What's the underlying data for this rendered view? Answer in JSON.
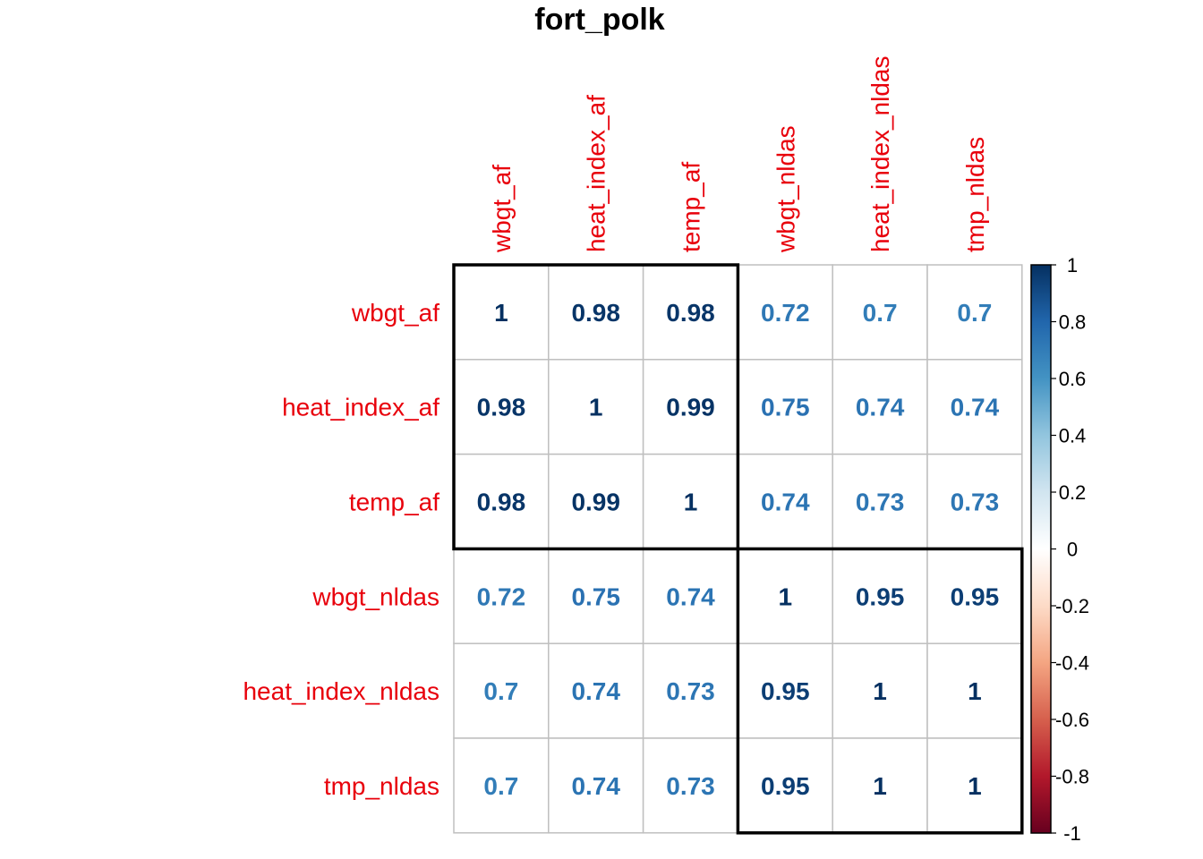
{
  "chart_data": {
    "type": "heatmap",
    "title": "fort_polk",
    "variables": [
      "wbgt_af",
      "heat_index_af",
      "temp_af",
      "wbgt_nldas",
      "heat_index_nldas",
      "tmp_nldas"
    ],
    "matrix": [
      [
        "1",
        "0.98",
        "0.98",
        "0.72",
        "0.7",
        "0.7"
      ],
      [
        "0.98",
        "1",
        "0.99",
        "0.75",
        "0.74",
        "0.74"
      ],
      [
        "0.98",
        "0.99",
        "1",
        "0.74",
        "0.73",
        "0.73"
      ],
      [
        "0.72",
        "0.75",
        "0.74",
        "1",
        "0.95",
        "0.95"
      ],
      [
        "0.7",
        "0.74",
        "0.73",
        "0.95",
        "1",
        "1"
      ],
      [
        "0.7",
        "0.74",
        "0.73",
        "0.95",
        "1",
        "1"
      ]
    ],
    "clusters": [
      [
        0,
        2
      ],
      [
        3,
        5
      ]
    ],
    "colorbar": {
      "range": [
        -1,
        1
      ],
      "ticks": [
        "1",
        "0.8",
        "0.6",
        "0.4",
        "0.2",
        "0",
        "-0.2",
        "-0.4",
        "-0.6",
        "-0.8",
        "-1"
      ]
    },
    "label_color": "#e8000b",
    "colormap": [
      "#67001f",
      "#b2182b",
      "#d6604d",
      "#f4a582",
      "#fddbc7",
      "#ffffff",
      "#d1e5f0",
      "#92c5de",
      "#4393c3",
      "#2166ac",
      "#053061"
    ]
  }
}
